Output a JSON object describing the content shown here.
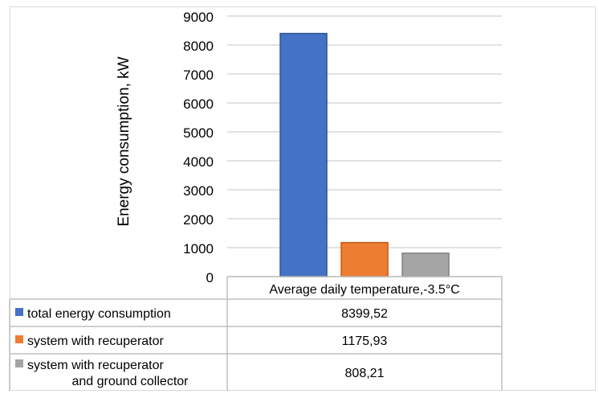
{
  "chart_data": {
    "type": "bar",
    "ylabel": "Energy consumption, kW",
    "ylim": [
      0,
      9000
    ],
    "yticks": [
      0,
      1000,
      2000,
      3000,
      4000,
      5000,
      6000,
      7000,
      8000,
      9000
    ],
    "grid": true,
    "categories": [
      "Average daily temperature,-3.5°C"
    ],
    "series": [
      {
        "name": "total energy consumption",
        "name_lines": [
          "total energy consumption"
        ],
        "values": [
          8399.52
        ],
        "value_label": "8399,52",
        "color": "#4472c4",
        "edge_color": "#2f5597"
      },
      {
        "name": "system with recuperator",
        "name_lines": [
          "system with recuperator"
        ],
        "values": [
          1175.93
        ],
        "value_label": "1175,93",
        "color": "#ed7d31",
        "edge_color": "#c55a11"
      },
      {
        "name": "system with recuperator and ground collector",
        "name_lines": [
          "system with recuperator",
          "and ground collector"
        ],
        "values": [
          808.21
        ],
        "value_label": "808,21",
        "color": "#a5a5a5",
        "edge_color": "#7f7f7f"
      }
    ],
    "legend": "data-table-below"
  }
}
